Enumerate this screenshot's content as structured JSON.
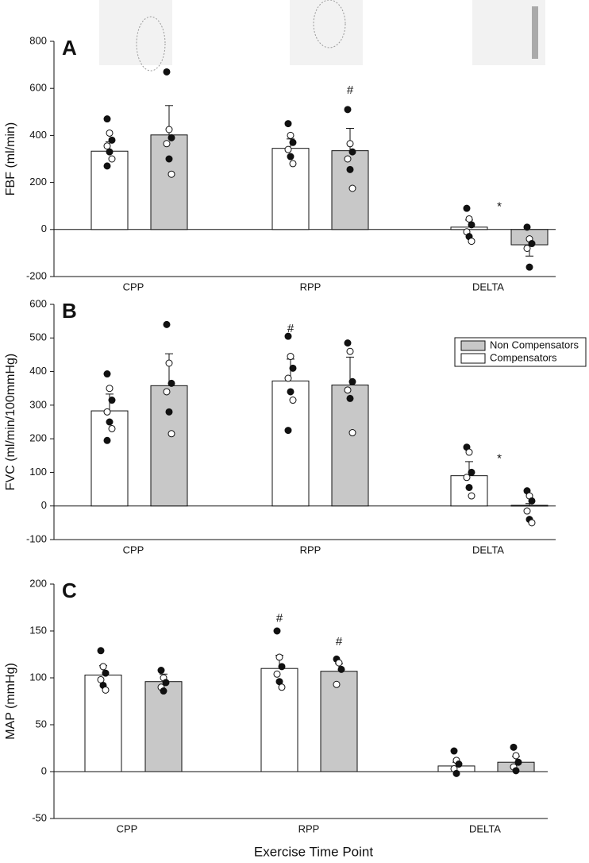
{
  "chart_data": [
    {
      "type": "bar",
      "panel": "A",
      "ylabel": "FBF (ml/min)",
      "categories": [
        "CPP",
        "RPP",
        "DELTA"
      ],
      "ylim": [
        -200,
        800
      ],
      "yticks": [
        -200,
        0,
        200,
        400,
        600,
        800
      ],
      "series": [
        {
          "name": "Compensators",
          "color": "#ffffff",
          "values": [
            333,
            345,
            10
          ],
          "errors": [
            40,
            40,
            30
          ],
          "points": [
            [
              470,
              410,
              380,
              355,
              330,
              300,
              270
            ],
            [
              450,
              400,
              370,
              340,
              310,
              280
            ],
            [
              90,
              45,
              20,
              -10,
              -30,
              -50
            ]
          ]
        },
        {
          "name": "Non Compensators",
          "color": "#c8c8c8",
          "values": [
            402,
            335,
            -65
          ],
          "errors": [
            125,
            95,
            48
          ],
          "points": [
            [
              670,
              425,
              390,
              365,
              300,
              235
            ],
            [
              510,
              365,
              330,
              300,
              255,
              175
            ],
            [
              10,
              -40,
              -60,
              -80,
              -160
            ]
          ]
        }
      ],
      "annotations": [
        {
          "text": "#",
          "category": "RPP",
          "series": "Non Compensators",
          "y": 590
        },
        {
          "text": "*",
          "category": "DELTA",
          "y": 95
        }
      ]
    },
    {
      "type": "bar",
      "panel": "B",
      "ylabel": "FVC (ml/min/100mmHg)",
      "categories": [
        "CPP",
        "RPP",
        "DELTA"
      ],
      "ylim": [
        -100,
        600
      ],
      "yticks": [
        -100,
        0,
        100,
        200,
        300,
        400,
        500,
        600
      ],
      "legend": "upper right",
      "series": [
        {
          "name": "Compensators",
          "color": "#ffffff",
          "values": [
            283,
            372,
            90
          ],
          "errors": [
            50,
            65,
            42
          ],
          "points": [
            [
              393,
              350,
              315,
              280,
              250,
              230,
              195
            ],
            [
              505,
              445,
              410,
              380,
              340,
              315,
              225
            ],
            [
              175,
              160,
              100,
              85,
              55,
              30
            ]
          ]
        },
        {
          "name": "Non Compensators",
          "color": "#c8c8c8",
          "values": [
            358,
            360,
            2
          ],
          "errors": [
            95,
            83,
            5
          ],
          "points": [
            [
              540,
              425,
              365,
              340,
              280,
              215
            ],
            [
              485,
              460,
              370,
              345,
              320,
              218
            ],
            [
              45,
              30,
              15,
              -15,
              -40,
              -50
            ]
          ]
        }
      ],
      "annotations": [
        {
          "text": "#",
          "category": "RPP",
          "series": "Compensators",
          "y": 527
        },
        {
          "text": "*",
          "category": "DELTA",
          "y": 140
        }
      ]
    },
    {
      "type": "bar",
      "panel": "C",
      "ylabel": "MAP (mmHg)",
      "xlabel": "Exercise Time Point",
      "categories": [
        "CPP",
        "RPP",
        "DELTA"
      ],
      "ylim": [
        -50,
        200
      ],
      "yticks": [
        -50,
        0,
        50,
        100,
        150,
        200
      ],
      "series": [
        {
          "name": "Compensators",
          "color": "#ffffff",
          "values": [
            103,
            110,
            6
          ],
          "errors": [
            10,
            14,
            4
          ],
          "points": [
            [
              129,
              112,
              105,
              98,
              92,
              87
            ],
            [
              150,
              122,
              112,
              104,
              96,
              90
            ],
            [
              22,
              12,
              8,
              3,
              -2
            ]
          ]
        },
        {
          "name": "Non Compensators",
          "color": "#c8c8c8",
          "values": [
            96,
            107,
            10
          ],
          "errors": [
            8,
            8,
            6
          ],
          "points": [
            [
              108,
              100,
              95,
              90,
              86
            ],
            [
              120,
              116,
              109,
              93
            ],
            [
              26,
              17,
              10,
              5,
              1
            ]
          ]
        }
      ],
      "annotations": [
        {
          "text": "#",
          "category": "RPP",
          "series": "Compensators",
          "y": 163
        },
        {
          "text": "#",
          "category": "RPP",
          "series": "Non Compensators",
          "y": 138
        }
      ]
    }
  ]
}
